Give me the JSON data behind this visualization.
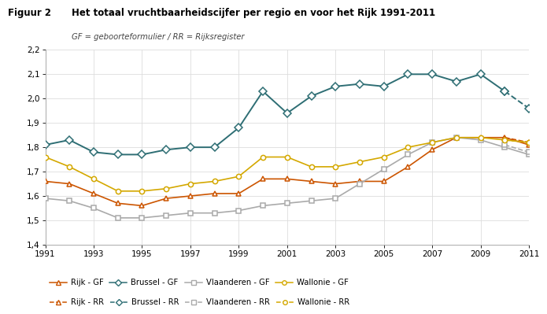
{
  "title": "Het totaal vruchtbaarheidscijfer per regio en voor het Rijk 1991-2011",
  "figure_label": "Figuur 2",
  "subtitle": "GF = geboorteformulier / RR = Rijksregister",
  "years": [
    1991,
    1992,
    1993,
    1994,
    1995,
    1996,
    1997,
    1998,
    1999,
    2000,
    2001,
    2002,
    2003,
    2004,
    2005,
    2006,
    2007,
    2008,
    2009,
    2010,
    2011
  ],
  "Rijk_GF": [
    1.66,
    1.65,
    1.61,
    1.57,
    1.56,
    1.59,
    1.6,
    1.61,
    1.61,
    1.67,
    1.67,
    1.66,
    1.65,
    1.66,
    1.66,
    1.72,
    1.79,
    1.84,
    1.84,
    1.84,
    1.81
  ],
  "Brussel_GF": [
    1.81,
    1.83,
    1.78,
    1.77,
    1.77,
    1.79,
    1.8,
    1.8,
    1.88,
    2.03,
    1.94,
    2.01,
    2.05,
    2.06,
    2.05,
    2.1,
    2.1,
    2.07,
    2.1,
    2.03,
    null
  ],
  "Vlaanderen_GF": [
    1.59,
    1.58,
    1.55,
    1.51,
    1.51,
    1.52,
    1.53,
    1.53,
    1.54,
    1.56,
    1.57,
    1.58,
    1.59,
    1.65,
    1.71,
    1.77,
    1.82,
    1.84,
    1.83,
    1.8,
    1.77
  ],
  "Wallonie_GF": [
    1.76,
    1.72,
    1.67,
    1.62,
    1.62,
    1.63,
    1.65,
    1.66,
    1.68,
    1.76,
    1.76,
    1.72,
    1.72,
    1.74,
    1.76,
    1.8,
    1.82,
    1.84,
    1.84,
    1.83,
    1.82
  ],
  "Rijk_RR": [
    null,
    null,
    null,
    null,
    null,
    null,
    null,
    null,
    null,
    null,
    null,
    null,
    null,
    null,
    null,
    null,
    null,
    null,
    null,
    1.84,
    1.82
  ],
  "Brussel_RR": [
    null,
    null,
    null,
    null,
    null,
    null,
    null,
    null,
    null,
    null,
    null,
    null,
    null,
    null,
    null,
    null,
    null,
    null,
    null,
    2.03,
    1.96
  ],
  "Vlaanderen_RR": [
    null,
    null,
    null,
    null,
    null,
    null,
    null,
    null,
    null,
    null,
    null,
    null,
    null,
    null,
    null,
    null,
    null,
    null,
    null,
    1.81,
    1.78
  ],
  "Wallonie_RR": [
    null,
    null,
    null,
    null,
    null,
    null,
    null,
    null,
    null,
    null,
    null,
    null,
    null,
    null,
    null,
    null,
    null,
    null,
    null,
    1.83,
    1.82
  ],
  "color_rijk": "#CC5500",
  "color_brussel": "#2E6E74",
  "color_vlaanderen": "#AAAAAA",
  "color_wallonie": "#D4A800",
  "ylim": [
    1.4,
    2.2
  ],
  "yticks": [
    1.4,
    1.5,
    1.6,
    1.7,
    1.8,
    1.9,
    2.0,
    2.1,
    2.2
  ],
  "xticks": [
    1991,
    1993,
    1995,
    1997,
    1999,
    2001,
    2003,
    2005,
    2007,
    2009,
    2011
  ]
}
